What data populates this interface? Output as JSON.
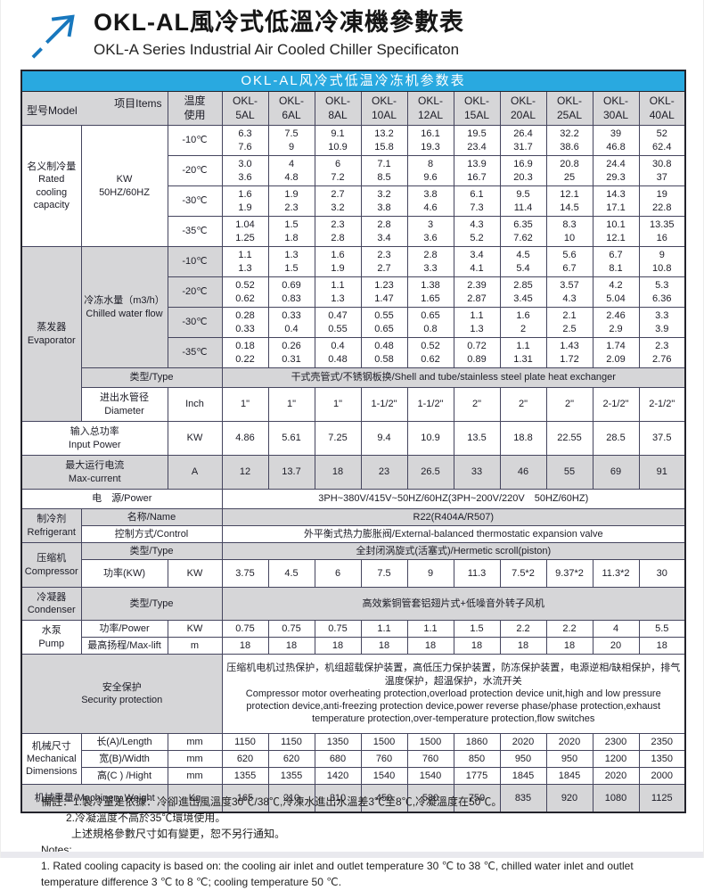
{
  "page": {
    "title_cn": "OKL-AL風冷式低溫冷凍機參數表",
    "title_en": "OKL-A Series Industrial Air Cooled Chiller Specificaton"
  },
  "colors": {
    "title_bar_blue": "#29a9e0",
    "logo_arrow_blue": "#1878be",
    "shaded_cell_gray": "#d6d6d8"
  },
  "table": {
    "title": "OKL-AL风冷式低温冷冻机参数表",
    "header": {
      "model_label": "型号Model",
      "items_label": "项目Items",
      "temp_label": [
        "温度",
        "使用"
      ],
      "models": [
        [
          "OKL-",
          "5AL"
        ],
        [
          "OKL-",
          "6AL"
        ],
        [
          "OKL-",
          "8AL"
        ],
        [
          "OKL-",
          "10AL"
        ],
        [
          "OKL-",
          "12AL"
        ],
        [
          "OKL-",
          "15AL"
        ],
        [
          "OKL-",
          "20AL"
        ],
        [
          "OKL-",
          "25AL"
        ],
        [
          "OKL-",
          "30AL"
        ],
        [
          "OKL-",
          "40AL"
        ]
      ]
    },
    "rated_cooling": {
      "section": [
        "名义制冷量",
        "Rated",
        "cooling",
        "capacity"
      ],
      "item": [
        "KW",
        "50HZ/60HZ"
      ],
      "rows": [
        {
          "temp": "-10℃",
          "cells": [
            [
              "6.3",
              "7.6"
            ],
            [
              "7.5",
              "9"
            ],
            [
              "9.1",
              "10.9"
            ],
            [
              "13.2",
              "15.8"
            ],
            [
              "16.1",
              "19.3"
            ],
            [
              "19.5",
              "23.4"
            ],
            [
              "26.4",
              "31.7"
            ],
            [
              "32.2",
              "38.6"
            ],
            [
              "39",
              "46.8"
            ],
            [
              "52",
              "62.4"
            ]
          ]
        },
        {
          "temp": "-20℃",
          "cells": [
            [
              "3.0",
              "3.6"
            ],
            [
              "4",
              "4.8"
            ],
            [
              "6",
              "7.2"
            ],
            [
              "7.1",
              "8.5"
            ],
            [
              "8",
              "9.6"
            ],
            [
              "13.9",
              "16.7"
            ],
            [
              "16.9",
              "20.3"
            ],
            [
              "20.8",
              "25"
            ],
            [
              "24.4",
              "29.3"
            ],
            [
              "30.8",
              "37"
            ]
          ]
        },
        {
          "temp": "-30℃",
          "cells": [
            [
              "1.6",
              "1.9"
            ],
            [
              "1.9",
              "2.3"
            ],
            [
              "2.7",
              "3.2"
            ],
            [
              "3.2",
              "3.8"
            ],
            [
              "3.8",
              "4.6"
            ],
            [
              "6.1",
              "7.3"
            ],
            [
              "9.5",
              "11.4"
            ],
            [
              "12.1",
              "14.5"
            ],
            [
              "14.3",
              "17.1"
            ],
            [
              "19",
              "22.8"
            ]
          ]
        },
        {
          "temp": "-35℃",
          "cells": [
            [
              "1.04",
              "1.25"
            ],
            [
              "1.5",
              "1.8"
            ],
            [
              "2.3",
              "2.8"
            ],
            [
              "2.8",
              "3.4"
            ],
            [
              "3",
              "3.6"
            ],
            [
              "4.3",
              "5.2"
            ],
            [
              "6.35",
              "7.62"
            ],
            [
              "8.3",
              "10"
            ],
            [
              "10.1",
              "12.1"
            ],
            [
              "13.35",
              "16"
            ]
          ]
        }
      ]
    },
    "evaporator": {
      "section": [
        "蒸发器",
        "Evaporator"
      ],
      "item": [
        "冷冻水量（m3/h）",
        "Chilled water flow"
      ],
      "rows": [
        {
          "temp": "-10℃",
          "cells": [
            [
              "1.1",
              "1.3"
            ],
            [
              "1.3",
              "1.5"
            ],
            [
              "1.6",
              "1.9"
            ],
            [
              "2.3",
              "2.7"
            ],
            [
              "2.8",
              "3.3"
            ],
            [
              "3.4",
              "4.1"
            ],
            [
              "4.5",
              "5.4"
            ],
            [
              "5.6",
              "6.7"
            ],
            [
              "6.7",
              "8.1"
            ],
            [
              "9",
              "10.8"
            ]
          ]
        },
        {
          "temp": "-20℃",
          "cells": [
            [
              "0.52",
              "0.62"
            ],
            [
              "0.69",
              "0.83"
            ],
            [
              "1.1",
              "1.3"
            ],
            [
              "1.23",
              "1.47"
            ],
            [
              "1.38",
              "1.65"
            ],
            [
              "2.39",
              "2.87"
            ],
            [
              "2.85",
              "3.45"
            ],
            [
              "3.57",
              "4.3"
            ],
            [
              "4.2",
              "5.04"
            ],
            [
              "5.3",
              "6.36"
            ]
          ]
        },
        {
          "temp": "-30℃",
          "cells": [
            [
              "0.28",
              "0.33"
            ],
            [
              "0.33",
              "0.4"
            ],
            [
              "0.47",
              "0.55"
            ],
            [
              "0.55",
              "0.65"
            ],
            [
              "0.65",
              "0.8"
            ],
            [
              "1.1",
              "1.3"
            ],
            [
              "1.6",
              "2"
            ],
            [
              "2.1",
              "2.5"
            ],
            [
              "2.46",
              "2.9"
            ],
            [
              "3.3",
              "3.9"
            ]
          ]
        },
        {
          "temp": "-35℃",
          "cells": [
            [
              "0.18",
              "0.22"
            ],
            [
              "0.26",
              "0.31"
            ],
            [
              "0.4",
              "0.48"
            ],
            [
              "0.48",
              "0.58"
            ],
            [
              "0.52",
              "0.62"
            ],
            [
              "0.72",
              "0.89"
            ],
            [
              "1.1",
              "1.31"
            ],
            [
              "1.43",
              "1.72"
            ],
            [
              "1.74",
              "2.09"
            ],
            [
              "2.3",
              "2.76"
            ]
          ]
        }
      ],
      "type_label": "类型/Type",
      "type_value": "干式壳管式/不锈钢板换/Shell and tube/stainless steel plate heat exchanger",
      "diameter_label": [
        "进出水管径",
        "Diameter"
      ],
      "diameter_unit": "Inch",
      "diameter_cells": [
        "1\"",
        "1\"",
        "1\"",
        "1-1/2\"",
        "1-1/2\"",
        "2\"",
        "2\"",
        "2\"",
        "2-1/2\"",
        "2-1/2\""
      ]
    },
    "input_power": {
      "label": [
        "输入总功率",
        "Input Power"
      ],
      "unit": "KW",
      "cells": [
        "4.86",
        "5.61",
        "7.25",
        "9.4",
        "10.9",
        "13.5",
        "18.8",
        "22.55",
        "28.5",
        "37.5"
      ]
    },
    "max_current": {
      "label": [
        "最大运行电流",
        "Max-current"
      ],
      "unit": "A",
      "cells": [
        "12",
        "13.7",
        "18",
        "23",
        "26.5",
        "33",
        "46",
        "55",
        "69",
        "91"
      ]
    },
    "power_supply": {
      "label": "电　源/Power",
      "value": "3PH~380V/415V~50HZ/60HZ(3PH~200V/220V　50HZ/60HZ)"
    },
    "refrigerant": {
      "section": [
        "制冷剂",
        "Refrigerant"
      ],
      "name_label": "名称/Name",
      "name_value": "R22(R404A/R507)",
      "control_label": "控制方式/Control",
      "control_value": "外平衡式热力膨胀阀/External-balanced thermostatic expansion valve"
    },
    "compressor": {
      "section": [
        "压缩机",
        "Compressor"
      ],
      "type_label": "类型/Type",
      "type_value": "全封闭涡旋式(活塞式)/Hermetic scroll(piston)",
      "power_label": "功率(KW)",
      "power_unit": "KW",
      "power_cells": [
        "3.75",
        "4.5",
        "6",
        "7.5",
        "9",
        "11.3",
        "7.5*2",
        "9.37*2",
        "11.3*2",
        "30"
      ]
    },
    "condenser": {
      "section": [
        "冷凝器",
        "Condenser"
      ],
      "type_label": "类型/Type",
      "type_value": "高效紫铜管套铝翅片式+低噪音外转子风机"
    },
    "pump": {
      "section": [
        "水泵",
        "Pump"
      ],
      "power_label": "功率/Power",
      "power_unit": "KW",
      "power_cells": [
        "0.75",
        "0.75",
        "0.75",
        "1.1",
        "1.1",
        "1.5",
        "2.2",
        "2.2",
        "4",
        "5.5"
      ],
      "lift_label": "最高扬程/Max-lift",
      "lift_unit": "m",
      "lift_cells": [
        "18",
        "18",
        "18",
        "18",
        "18",
        "18",
        "18",
        "18",
        "20",
        "18"
      ]
    },
    "security": {
      "label": [
        "安全保护",
        "Security protection"
      ],
      "text_cn": "压缩机电机过热保护，机组超载保护装置，高低压力保护装置，防冻保护装置，电源逆相/缺相保护，排气温度保护，超温保护，水流开关",
      "text_en": " Compressor motor overheating protection,overload protection device unit,high and low pressure protection device,anti-freezing protection device,power reverse phase/phase protection,exhaust temperature protection,over-temperature protection,flow switches"
    },
    "dimensions": {
      "section": [
        "机械尺寸",
        "Mechanical",
        "Dimensions"
      ],
      "rows": [
        {
          "label": "长(A)/Length",
          "unit": "mm",
          "cells": [
            "1150",
            "1150",
            "1350",
            "1500",
            "1500",
            "1860",
            "2020",
            "2020",
            "2300",
            "2350"
          ]
        },
        {
          "label": "宽(B)/Width",
          "unit": "mm",
          "cells": [
            "620",
            "620",
            "680",
            "760",
            "760",
            "850",
            "950",
            "950",
            "1200",
            "1350"
          ]
        },
        {
          "label": "高(C ) /Hight",
          "unit": "mm",
          "cells": [
            "1355",
            "1355",
            "1420",
            "1540",
            "1540",
            "1775",
            "1845",
            "1845",
            "2020",
            "2000"
          ]
        }
      ]
    },
    "weight": {
      "label": "机械重量/Machinery Weight",
      "unit": "Kg",
      "cells": [
        "165",
        "210",
        "310",
        "450",
        "530",
        "750",
        "835",
        "920",
        "1080",
        "1125"
      ]
    }
  },
  "notes": {
    "line1": "備註：1.製冷量是依據：冷卻進出風溫度30℃/38℃,冷凍水進出水溫差3℃至8℃,冷凝溫度在50℃。",
    "line2": "2.冷凝溫度不高於35℃環境使用。",
    "line3": "上述規格參數尺寸如有變更，恕不另行通知。",
    "line4": "Notes:",
    "line5": "1. Rated cooling capacity is based on: the cooling air inlet and outlet temperature 30 ℃ to 38 ℃, chilled water inlet and outlet temperature difference 3 ℃ to 8 ℃; cooling temperature 50 ℃."
  }
}
